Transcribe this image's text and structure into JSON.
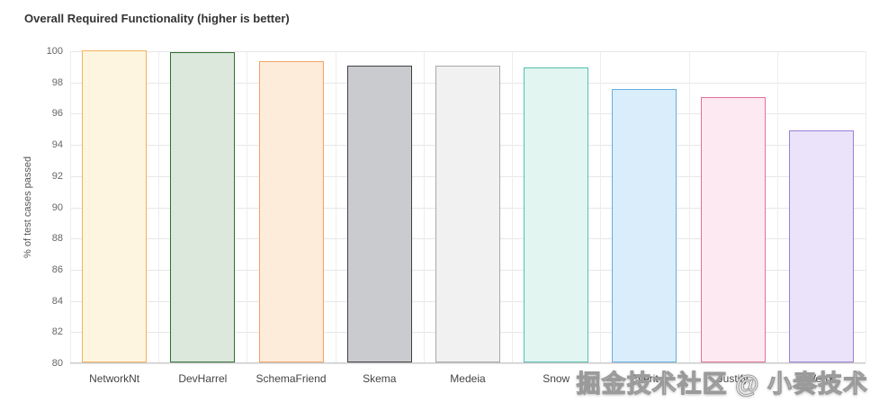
{
  "watermark": "掘金技术社区 @ 小奏技术",
  "chart_data": {
    "type": "bar",
    "title": "Overall Required Functionality (higher is better)",
    "xlabel": "",
    "ylabel": "% of test cases passed",
    "ylim": [
      80,
      100
    ],
    "yticks": [
      80,
      82,
      84,
      86,
      88,
      90,
      92,
      94,
      96,
      98,
      100
    ],
    "grid": "light gray horizontal and vertical gridlines",
    "legend": "none",
    "categories": [
      "NetworkNt",
      "DevHarrel",
      "SchemaFriend",
      "Skema",
      "Medeia",
      "Snow",
      "Everit",
      "Justify",
      "Vertx"
    ],
    "values": [
      100,
      99.9,
      99.3,
      99.0,
      99.0,
      98.9,
      97.5,
      97.0,
      94.9
    ],
    "bar_colors": [
      {
        "fill": "#fdf5e0",
        "stroke": "#f2b25c"
      },
      {
        "fill": "#dce8dc",
        "stroke": "#2f6f33"
      },
      {
        "fill": "#fdecda",
        "stroke": "#f0a467"
      },
      {
        "fill": "#c9cbcf",
        "stroke": "#3f4042"
      },
      {
        "fill": "#f1f1f1",
        "stroke": "#a8a8a8"
      },
      {
        "fill": "#e2f5f1",
        "stroke": "#53c0b2"
      },
      {
        "fill": "#daedfa",
        "stroke": "#64aee0"
      },
      {
        "fill": "#fce9f1",
        "stroke": "#e5709a"
      },
      {
        "fill": "#eae3f9",
        "stroke": "#9a7fd6"
      }
    ]
  }
}
